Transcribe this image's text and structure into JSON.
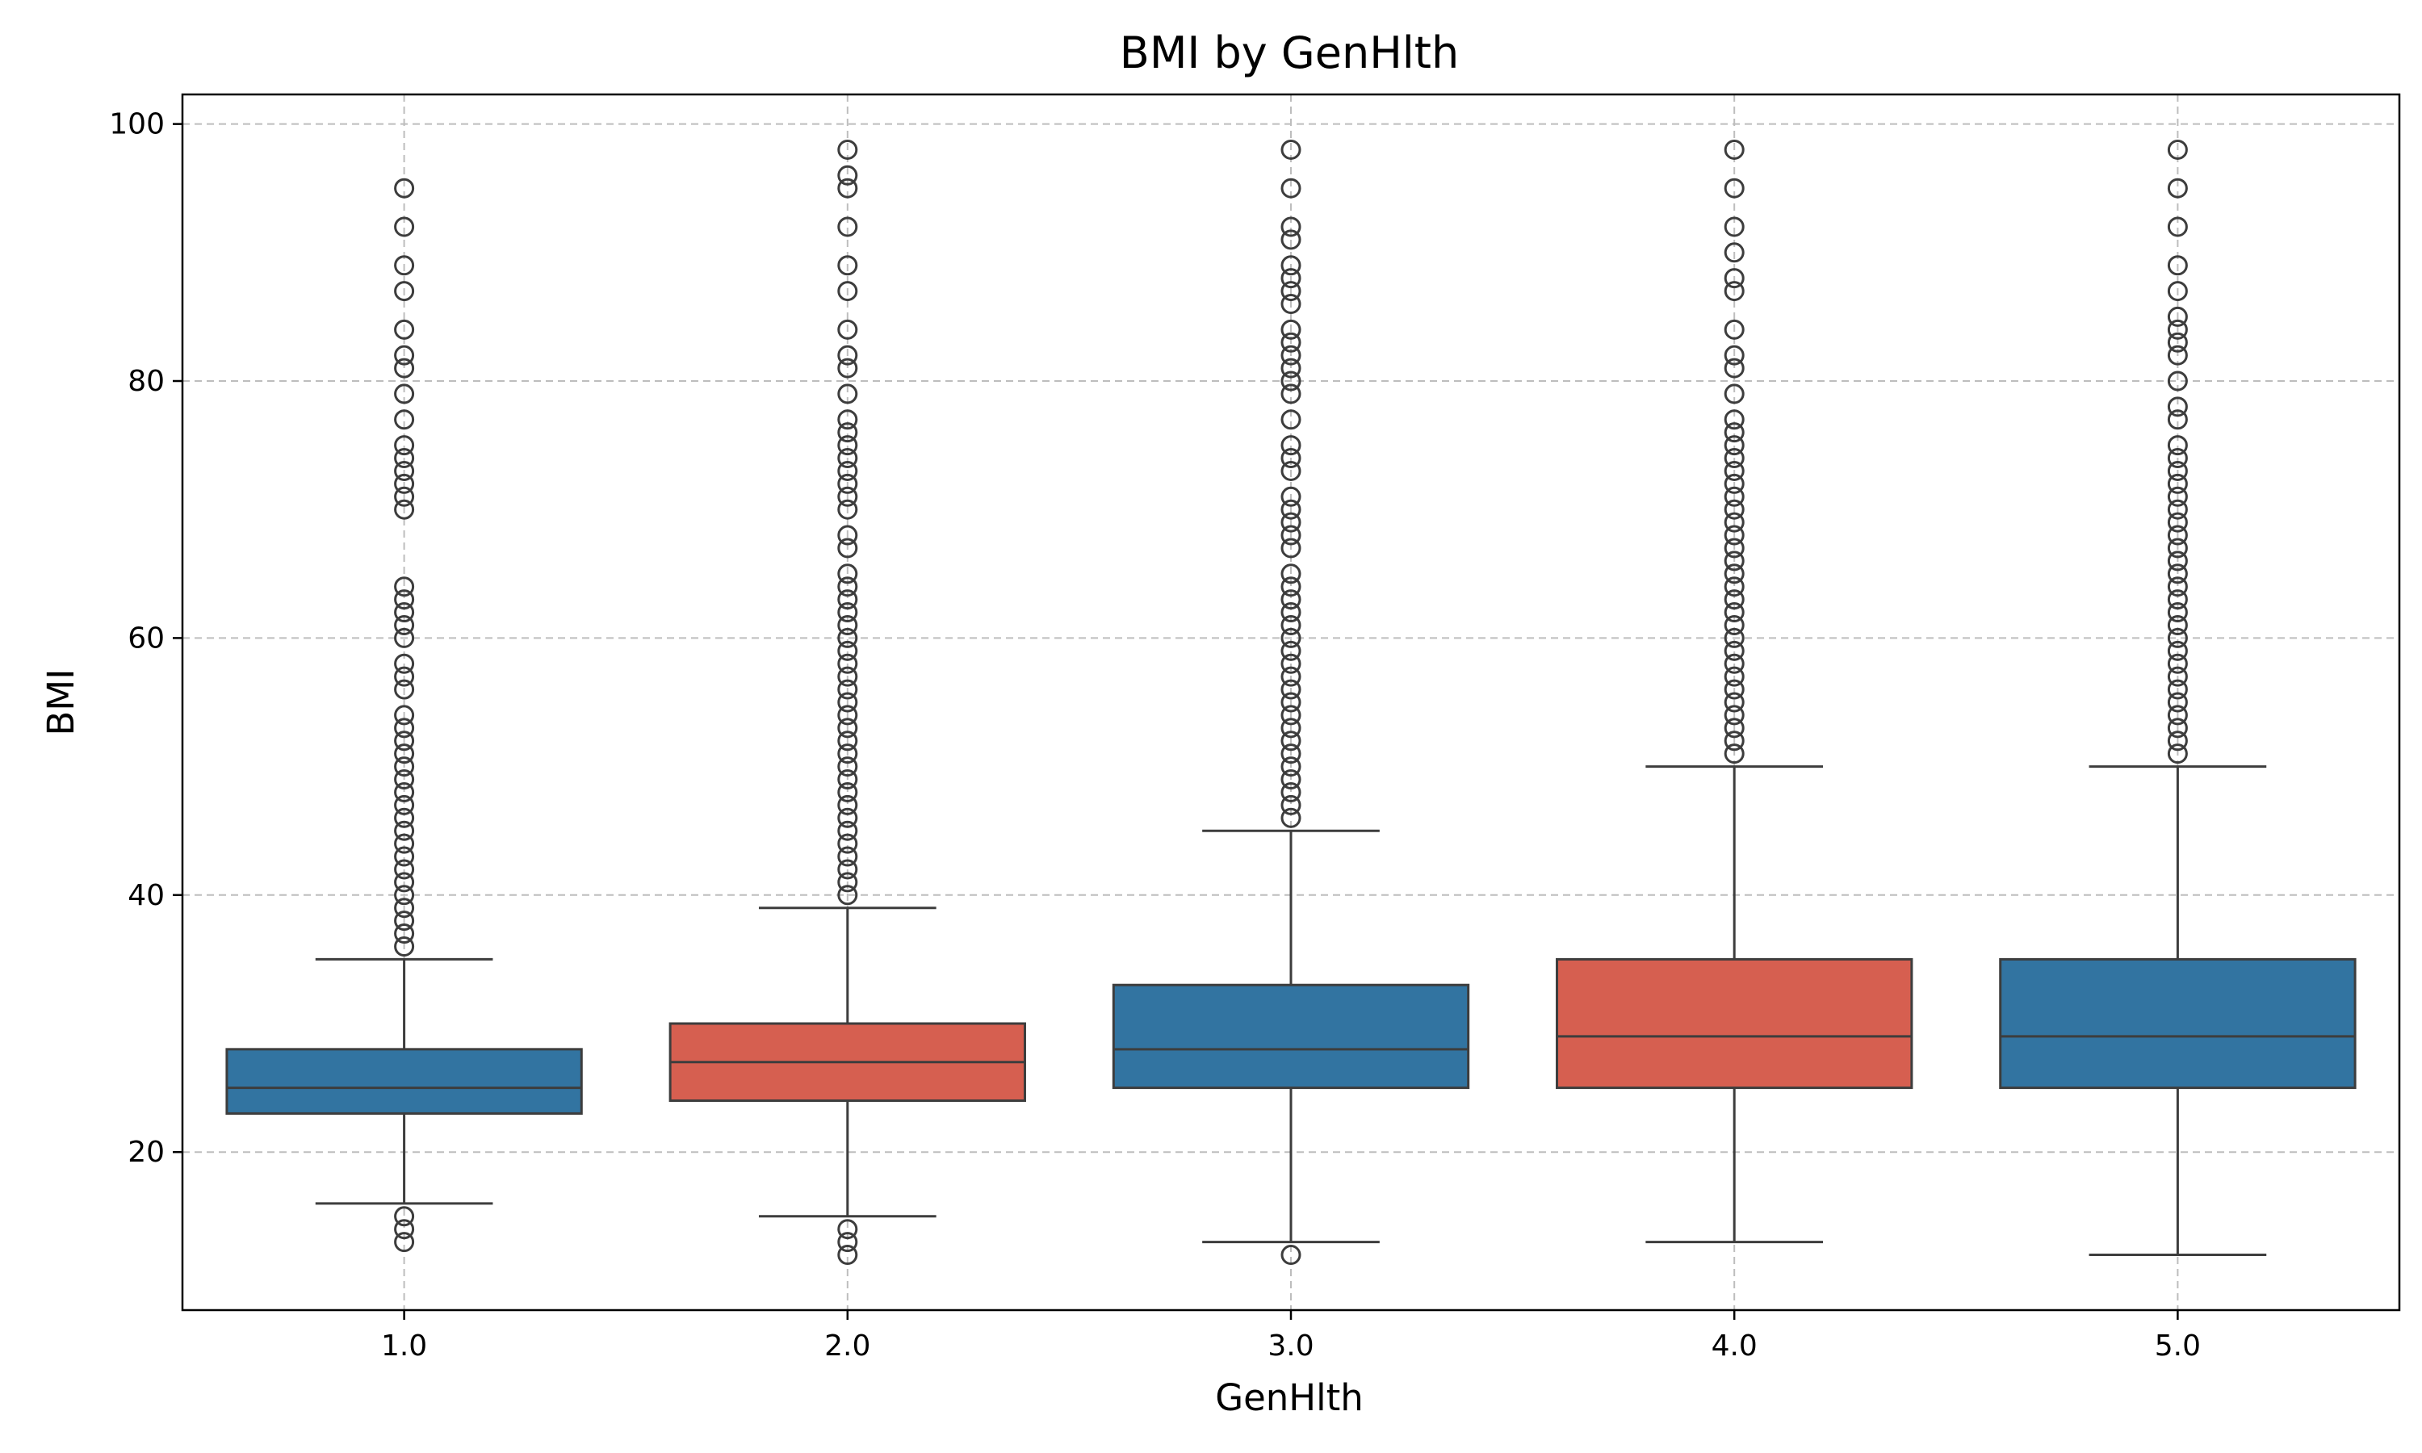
{
  "chart_data": {
    "type": "box",
    "title": "BMI by GenHlth",
    "xlabel": "GenHlth",
    "ylabel": "BMI",
    "categories": [
      "1.0",
      "2.0",
      "3.0",
      "4.0",
      "5.0"
    ],
    "ylim": [
      7.7,
      102.3
    ],
    "yticks": [
      20,
      40,
      60,
      80,
      100
    ],
    "grid": true,
    "colors": [
      "#3274A1",
      "#D65F50",
      "#3274A1",
      "#D65F50",
      "#3274A1"
    ],
    "boxes": [
      {
        "category": "1.0",
        "whisker_low": 16,
        "q1": 23,
        "median": 25,
        "q3": 28,
        "whisker_high": 35,
        "outliers": [
          13,
          14,
          15,
          36,
          37,
          38,
          39,
          40,
          41,
          42,
          43,
          44,
          45,
          46,
          47,
          48,
          49,
          50,
          51,
          52,
          53,
          54,
          56,
          57,
          58,
          60,
          61,
          62,
          63,
          64,
          70,
          71,
          72,
          73,
          74,
          75,
          77,
          79,
          81,
          82,
          84,
          87,
          89,
          92,
          95
        ]
      },
      {
        "category": "2.0",
        "whisker_low": 15,
        "q1": 24,
        "median": 27,
        "q3": 30,
        "whisker_high": 39,
        "outliers": [
          12,
          13,
          14,
          40,
          41,
          42,
          43,
          44,
          45,
          46,
          47,
          48,
          49,
          50,
          51,
          52,
          53,
          54,
          55,
          56,
          57,
          58,
          59,
          60,
          61,
          62,
          63,
          64,
          65,
          67,
          68,
          70,
          71,
          72,
          73,
          74,
          75,
          76,
          77,
          79,
          81,
          82,
          84,
          87,
          89,
          92,
          95,
          96,
          98
        ]
      },
      {
        "category": "3.0",
        "whisker_low": 13,
        "q1": 25,
        "median": 28,
        "q3": 33,
        "whisker_high": 45,
        "outliers": [
          12,
          46,
          47,
          48,
          49,
          50,
          51,
          52,
          53,
          54,
          55,
          56,
          57,
          58,
          59,
          60,
          61,
          62,
          63,
          64,
          65,
          67,
          68,
          69,
          70,
          71,
          73,
          74,
          75,
          77,
          79,
          80,
          81,
          82,
          83,
          84,
          86,
          87,
          88,
          89,
          91,
          92,
          95,
          98
        ]
      },
      {
        "category": "4.0",
        "whisker_low": 13,
        "q1": 25,
        "median": 29,
        "q3": 35,
        "whisker_high": 50,
        "outliers": [
          51,
          52,
          53,
          54,
          55,
          56,
          57,
          58,
          59,
          60,
          61,
          62,
          63,
          64,
          65,
          66,
          67,
          68,
          69,
          70,
          71,
          72,
          73,
          74,
          75,
          76,
          77,
          79,
          81,
          82,
          84,
          87,
          88,
          90,
          92,
          95,
          98
        ]
      },
      {
        "category": "5.0",
        "whisker_low": 12,
        "q1": 25,
        "median": 29,
        "q3": 35,
        "whisker_high": 50,
        "outliers": [
          51,
          52,
          53,
          54,
          55,
          56,
          57,
          58,
          59,
          60,
          61,
          62,
          63,
          64,
          65,
          66,
          67,
          68,
          69,
          70,
          71,
          72,
          73,
          74,
          75,
          77,
          78,
          80,
          82,
          83,
          84,
          85,
          87,
          89,
          92,
          95,
          98
        ]
      }
    ]
  }
}
